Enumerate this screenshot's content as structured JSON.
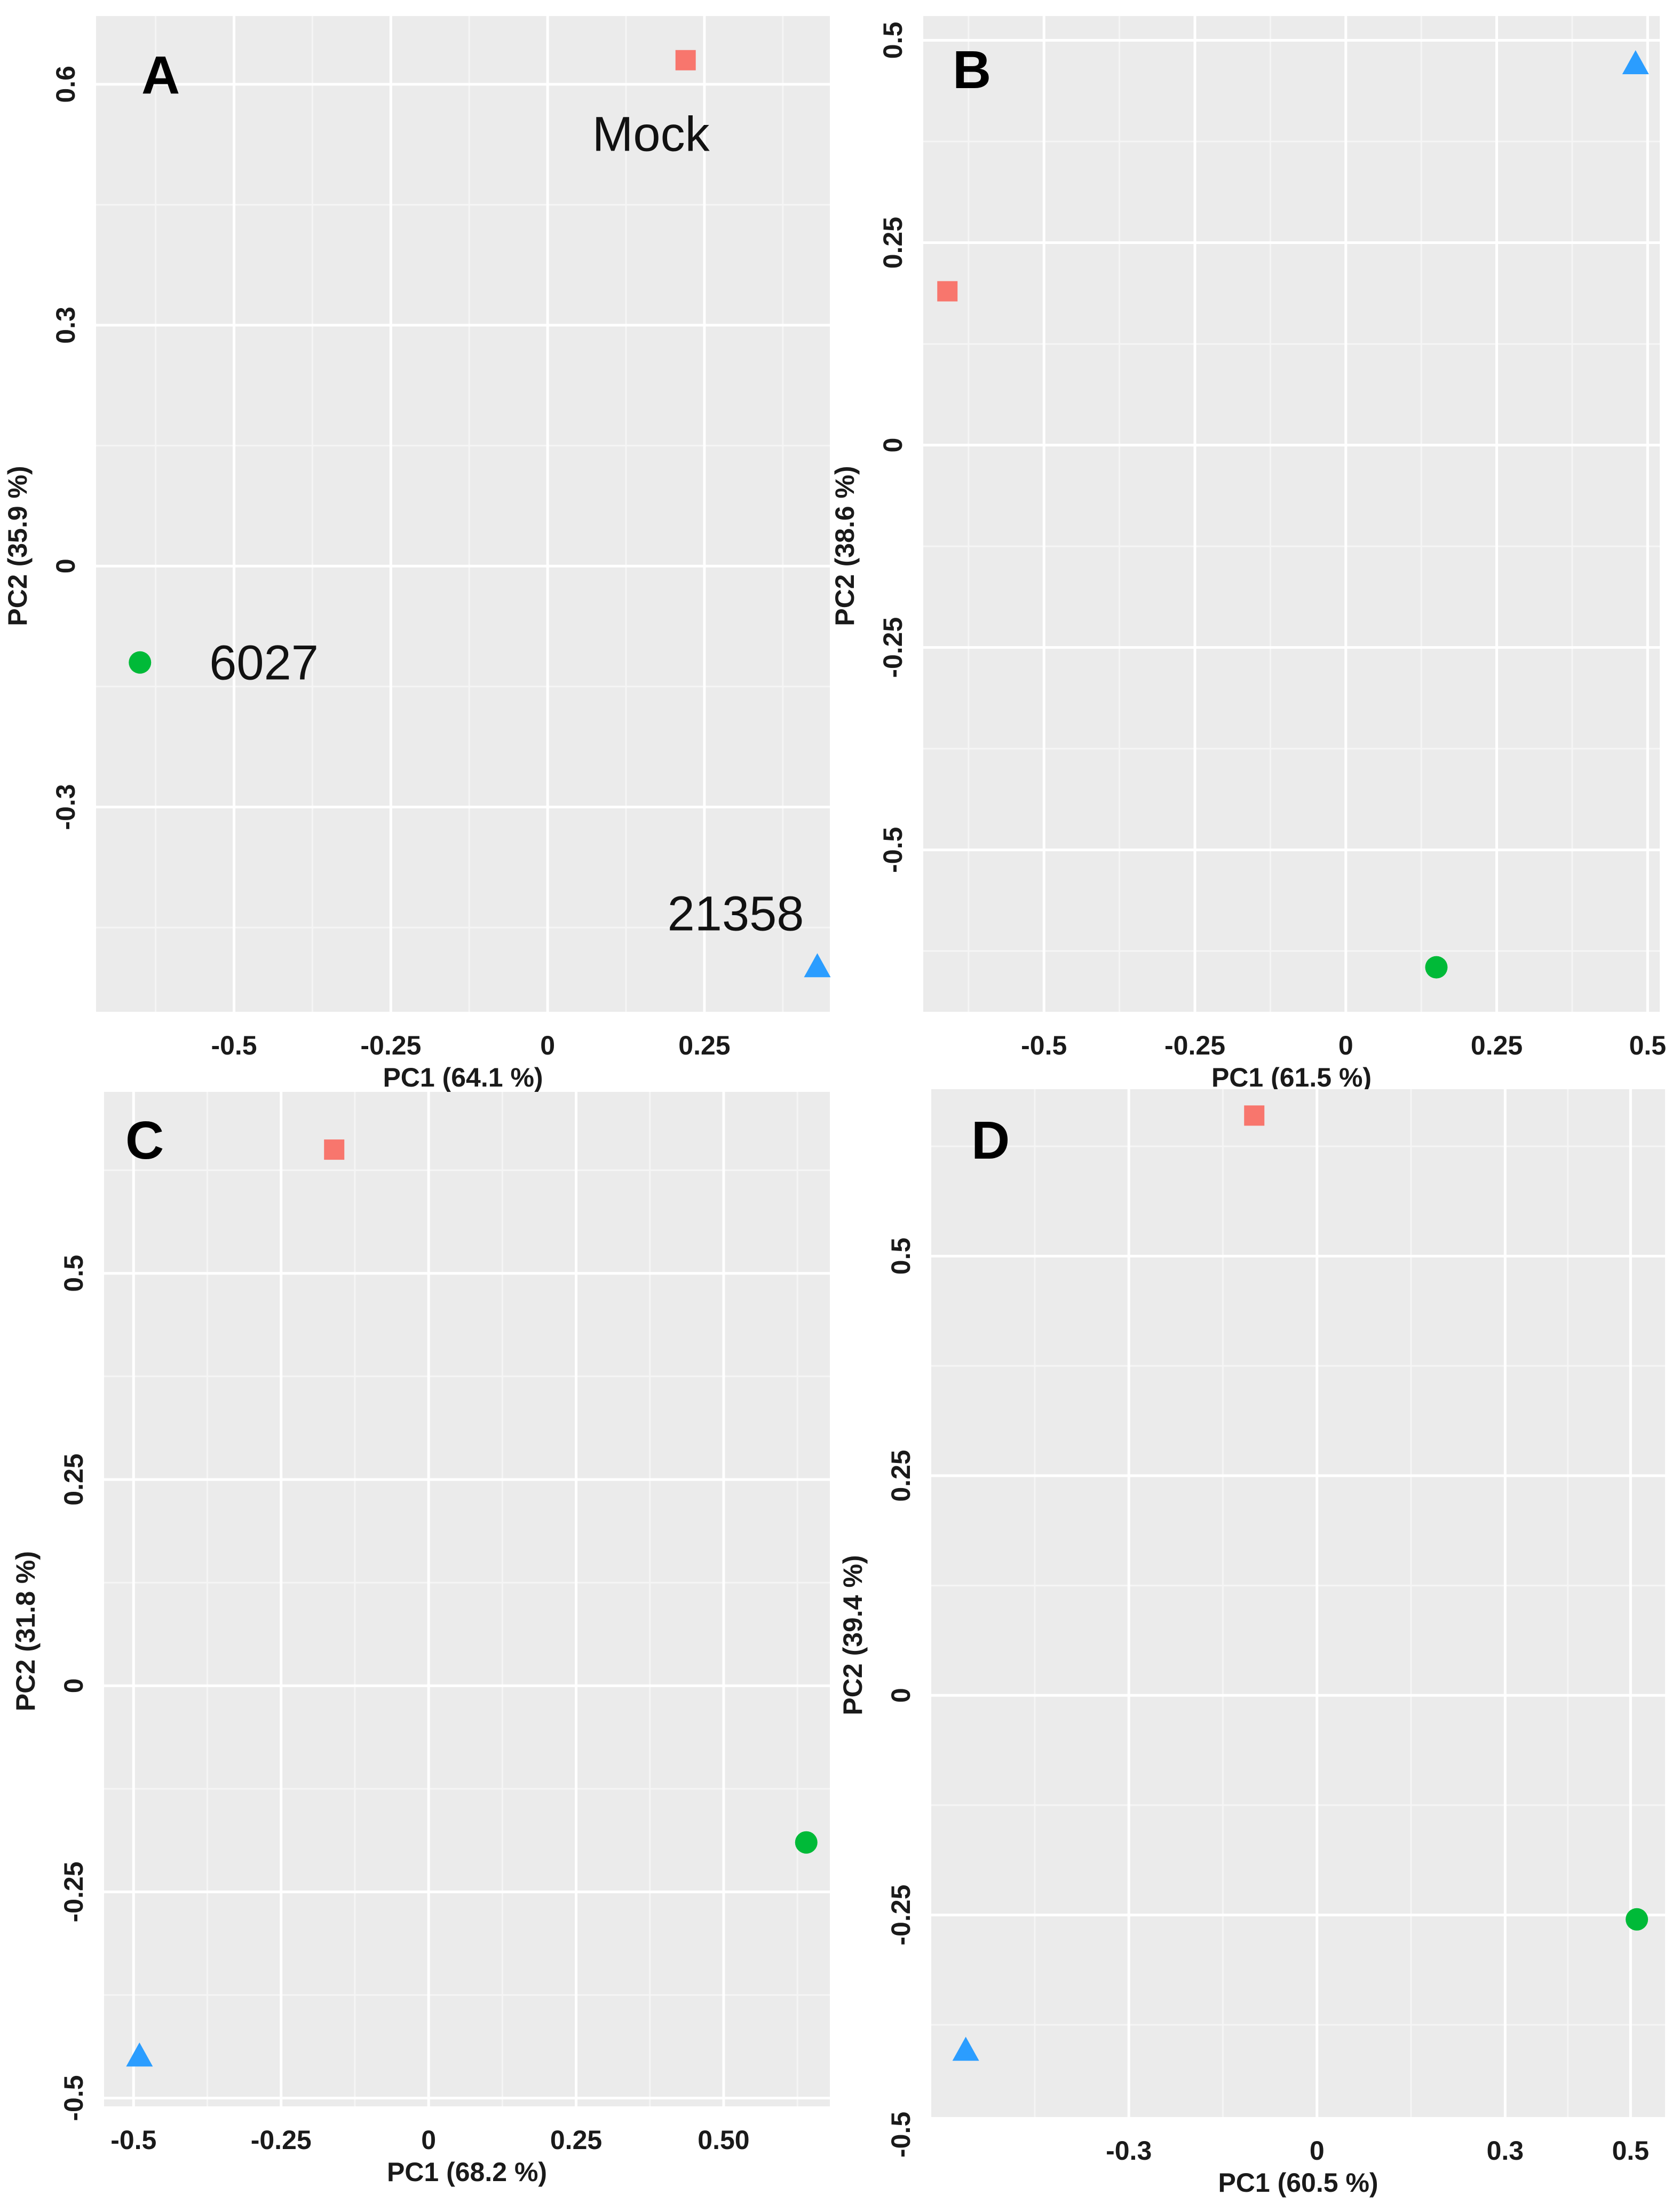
{
  "figure": {
    "colors": {
      "panel_background": "#ebebeb",
      "gridline_major": "#ffffff",
      "gridline_minor": "#f5f5f5",
      "mock": "#f8766d",
      "isolate_6027": "#00ba38",
      "isolate_21358": "#2b9dff"
    },
    "marker_shapes": {
      "mock": "square",
      "isolate_6027": "circle",
      "isolate_21358": "triangle"
    }
  },
  "chart_data": [
    {
      "type": "scatter",
      "panel": "A",
      "title": "",
      "xlabel": "PC1 (64.1 %)",
      "ylabel": "PC2 (35.9 %)",
      "xlim": [
        -0.72,
        0.45
      ],
      "ylim": [
        -0.555,
        0.685
      ],
      "xticks": [
        -0.5,
        -0.25,
        0,
        0.25
      ],
      "xtick_labels": [
        "-0.5",
        "-0.25",
        "0",
        "0.25"
      ],
      "yticks": [
        -0.3,
        0,
        0.3,
        0.6
      ],
      "ytick_labels": [
        "-0.3",
        "0",
        "0.3",
        "0.6"
      ],
      "grid": true,
      "points": [
        {
          "group": "mock",
          "shape": "square",
          "x": 0.22,
          "y": 0.63,
          "label": "Mock"
        },
        {
          "group": "isolate_6027",
          "shape": "circle",
          "x": -0.65,
          "y": -0.12,
          "label": "6027"
        },
        {
          "group": "isolate_21358",
          "shape": "triangle",
          "x": 0.43,
          "y": -0.5,
          "label": "21358"
        }
      ]
    },
    {
      "type": "scatter",
      "panel": "B",
      "title": "",
      "xlabel": "PC1 (61.5 %)",
      "ylabel": "PC2 (38.6 %)",
      "xlim": [
        -0.7,
        0.52
      ],
      "ylim": [
        -0.7,
        0.53
      ],
      "xticks": [
        -0.5,
        -0.25,
        0,
        0.25,
        0.5
      ],
      "xtick_labels": [
        "-0.5",
        "-0.25",
        "0",
        "0.25",
        "0.5"
      ],
      "yticks": [
        -0.5,
        -0.25,
        0,
        0.25,
        0.5
      ],
      "ytick_labels": [
        "-0.5",
        "-0.25",
        "0",
        "0.25",
        "0.5"
      ],
      "grid": true,
      "points": [
        {
          "group": "mock",
          "shape": "square",
          "x": -0.66,
          "y": 0.19,
          "label": ""
        },
        {
          "group": "isolate_21358",
          "shape": "triangle",
          "x": 0.48,
          "y": 0.47,
          "label": ""
        },
        {
          "group": "isolate_6027",
          "shape": "circle",
          "x": 0.15,
          "y": -0.645,
          "label": ""
        }
      ]
    },
    {
      "type": "scatter",
      "panel": "C",
      "title": "",
      "xlabel": "PC1 (68.2 %)",
      "ylabel": "PC2 (31.8 %)",
      "xlim": [
        -0.55,
        0.68
      ],
      "ylim": [
        -0.51,
        0.72
      ],
      "xticks": [
        -0.5,
        -0.25,
        0,
        0.25,
        0.5
      ],
      "xtick_labels": [
        "-0.5",
        "-0.25",
        "0",
        "0.25",
        "0.50"
      ],
      "yticks": [
        -0.5,
        -0.25,
        0,
        0.25,
        0.5
      ],
      "ytick_labels": [
        "-0.5",
        "-0.25",
        "0",
        "0.25",
        "0.5"
      ],
      "grid": true,
      "points": [
        {
          "group": "mock",
          "shape": "square",
          "x": -0.16,
          "y": 0.65,
          "label": ""
        },
        {
          "group": "isolate_6027",
          "shape": "circle",
          "x": 0.64,
          "y": -0.19,
          "label": ""
        },
        {
          "group": "isolate_21358",
          "shape": "triangle",
          "x": -0.49,
          "y": -0.45,
          "label": ""
        }
      ]
    },
    {
      "type": "scatter",
      "panel": "D",
      "title": "",
      "xlabel": "PC1 (60.5 %)",
      "ylabel": "PC2 (39.4 %)",
      "xlim": [
        -0.615,
        0.555
      ],
      "ylim": [
        -0.48,
        0.69
      ],
      "xticks": [
        -0.3,
        0,
        0.3,
        0.5
      ],
      "xtick_labels": [
        "-0.3",
        "0",
        "0.3",
        "0.5"
      ],
      "yticks": [
        -0.5,
        -0.25,
        0,
        0.25,
        0.5
      ],
      "ytick_labels": [
        "-0.5",
        "-0.25",
        "0",
        "0.25",
        "0.5"
      ],
      "grid": true,
      "points": [
        {
          "group": "mock",
          "shape": "square",
          "x": -0.1,
          "y": 0.66,
          "label": ""
        },
        {
          "group": "isolate_6027",
          "shape": "circle",
          "x": 0.51,
          "y": -0.255,
          "label": ""
        },
        {
          "group": "isolate_21358",
          "shape": "triangle",
          "x": -0.56,
          "y": -0.405,
          "label": ""
        }
      ]
    }
  ]
}
